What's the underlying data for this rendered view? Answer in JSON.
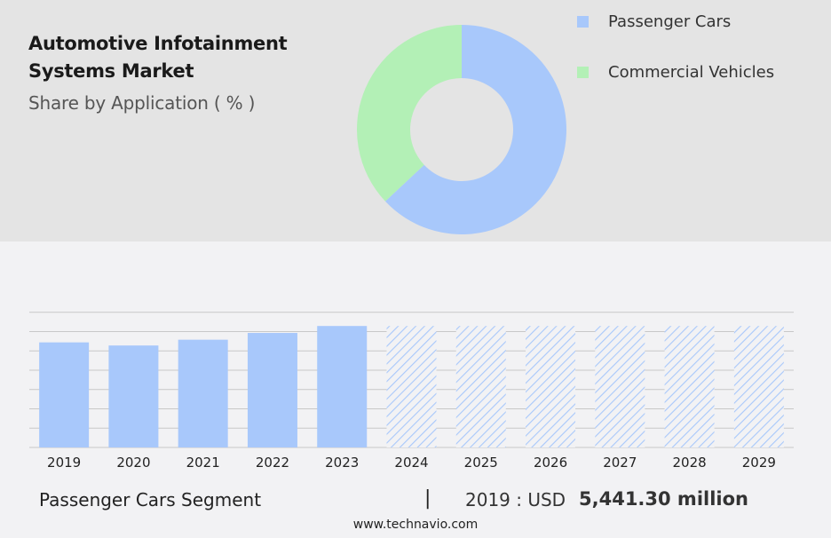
{
  "header": {
    "title": "Automotive Infotainment Systems Market",
    "subtitle": "Share by Application ( % )"
  },
  "colors": {
    "passenger": "#a8c8fb",
    "commercial": "#b3f0b6",
    "forecast_hatch": "#a8c8fb",
    "grid": "#c8c8c8"
  },
  "chart_data": [
    {
      "type": "pie",
      "variant": "donut",
      "title": "",
      "series": [
        {
          "name": "Passenger Cars",
          "value": 63,
          "color": "#a8c8fb"
        },
        {
          "name": "Commercial Vehicles",
          "value": 37,
          "color": "#b3f0b6"
        }
      ],
      "legend": "right"
    },
    {
      "type": "bar",
      "title": "",
      "categories": [
        "2019",
        "2020",
        "2021",
        "2022",
        "2023",
        "2024",
        "2025",
        "2026",
        "2027",
        "2028",
        "2029"
      ],
      "values": [
        5441.3,
        5280,
        5580,
        5930,
        6290,
        6290,
        6290,
        6290,
        6290,
        6290,
        6290
      ],
      "forecast_from": "2024",
      "ylim": [
        0,
        8000
      ],
      "grid": true,
      "xlabel": "",
      "ylabel": ""
    }
  ],
  "footer": {
    "segment_label": "Passenger Cars Segment",
    "separator": "|",
    "year_text": "2019 : USD",
    "value_text": "5,441.30 million",
    "source": "www.technavio.com"
  }
}
